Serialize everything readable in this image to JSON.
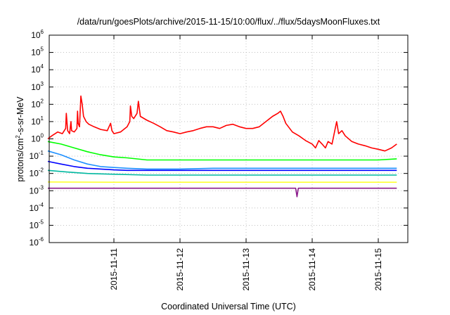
{
  "chart_data": {
    "type": "line",
    "title": "/data/run/goesPlots/archive/2015-11-15/10:00/flux/../flux/5daysMoonFluxes.txt",
    "xlabel": "Coordinated Universal Time (UTC)",
    "ylabel": "protons/cm²-s-sr-MeV",
    "ylabel_parts": {
      "before": "protons/cm",
      "sup": "2",
      "after": "-s-sr-MeV"
    },
    "yscale": "log",
    "ylim_exponent": [
      -6,
      6
    ],
    "y_tick_exponents": [
      -6,
      -5,
      -4,
      -3,
      -2,
      -1,
      0,
      1,
      2,
      3,
      4,
      5,
      6
    ],
    "y_tick_base": "10",
    "x_range_days": [
      "2015-11-10",
      "2015-11-15"
    ],
    "x_ticks": [
      "2015-11-11",
      "2015-11-12",
      "2015-11-13",
      "2015-11-14",
      "2015-11-15"
    ],
    "grid": true,
    "series": [
      {
        "color": "#ff0000",
        "points": [
          [
            0.0,
            1.0
          ],
          [
            0.06,
            1.5
          ],
          [
            0.15,
            2.5
          ],
          [
            0.22,
            2.0
          ],
          [
            0.27,
            4.0
          ],
          [
            0.28,
            30
          ],
          [
            0.3,
            3.0
          ],
          [
            0.33,
            2.0
          ],
          [
            0.35,
            10
          ],
          [
            0.36,
            3.0
          ],
          [
            0.4,
            2.5
          ],
          [
            0.44,
            4.0
          ],
          [
            0.45,
            40
          ],
          [
            0.46,
            8.0
          ],
          [
            0.48,
            5.0
          ],
          [
            0.5,
            300
          ],
          [
            0.52,
            100
          ],
          [
            0.54,
            20
          ],
          [
            0.58,
            10
          ],
          [
            0.62,
            7
          ],
          [
            0.7,
            5
          ],
          [
            0.8,
            3.5
          ],
          [
            0.9,
            3.0
          ],
          [
            0.95,
            8.0
          ],
          [
            0.97,
            3.0
          ],
          [
            1.0,
            2.0
          ],
          [
            1.1,
            2.5
          ],
          [
            1.2,
            5.0
          ],
          [
            1.24,
            10
          ],
          [
            1.25,
            80
          ],
          [
            1.27,
            20
          ],
          [
            1.3,
            15
          ],
          [
            1.35,
            30
          ],
          [
            1.37,
            150
          ],
          [
            1.4,
            20
          ],
          [
            1.5,
            12
          ],
          [
            1.6,
            8
          ],
          [
            1.7,
            5
          ],
          [
            1.8,
            3
          ],
          [
            1.9,
            2.5
          ],
          [
            2.0,
            2.0
          ],
          [
            2.1,
            2.5
          ],
          [
            2.2,
            3
          ],
          [
            2.3,
            4
          ],
          [
            2.4,
            5
          ],
          [
            2.5,
            5
          ],
          [
            2.6,
            4
          ],
          [
            2.7,
            6
          ],
          [
            2.8,
            7
          ],
          [
            2.9,
            5
          ],
          [
            3.0,
            4
          ],
          [
            3.1,
            4
          ],
          [
            3.2,
            5
          ],
          [
            3.3,
            10
          ],
          [
            3.4,
            20
          ],
          [
            3.48,
            30
          ],
          [
            3.52,
            40
          ],
          [
            3.56,
            20
          ],
          [
            3.6,
            8
          ],
          [
            3.7,
            2.5
          ],
          [
            3.8,
            1.5
          ],
          [
            3.9,
            0.8
          ],
          [
            4.0,
            0.5
          ],
          [
            4.05,
            0.3
          ],
          [
            4.1,
            0.8
          ],
          [
            4.15,
            0.5
          ],
          [
            4.2,
            0.3
          ],
          [
            4.24,
            0.7
          ],
          [
            4.3,
            0.5
          ],
          [
            4.37,
            10
          ],
          [
            4.4,
            2
          ],
          [
            4.45,
            3
          ],
          [
            4.5,
            1.5
          ],
          [
            4.6,
            0.7
          ],
          [
            4.7,
            0.5
          ],
          [
            4.8,
            0.4
          ],
          [
            4.9,
            0.3
          ],
          [
            5.0,
            0.25
          ],
          [
            5.1,
            0.2
          ],
          [
            5.2,
            0.3
          ],
          [
            5.28,
            0.5
          ]
        ]
      },
      {
        "color": "#00ff00",
        "points": [
          [
            0.0,
            0.7
          ],
          [
            0.2,
            0.5
          ],
          [
            0.4,
            0.3
          ],
          [
            0.6,
            0.18
          ],
          [
            0.8,
            0.12
          ],
          [
            1.0,
            0.09
          ],
          [
            1.2,
            0.08
          ],
          [
            1.5,
            0.06
          ],
          [
            2.0,
            0.06
          ],
          [
            2.5,
            0.06
          ],
          [
            3.0,
            0.06
          ],
          [
            3.5,
            0.06
          ],
          [
            4.0,
            0.06
          ],
          [
            4.5,
            0.06
          ],
          [
            5.0,
            0.06
          ],
          [
            5.28,
            0.07
          ]
        ]
      },
      {
        "color": "#1e90ff",
        "points": [
          [
            0.0,
            0.2
          ],
          [
            0.2,
            0.12
          ],
          [
            0.4,
            0.06
          ],
          [
            0.6,
            0.035
          ],
          [
            0.8,
            0.025
          ],
          [
            1.0,
            0.022
          ],
          [
            1.2,
            0.02
          ],
          [
            1.5,
            0.018
          ],
          [
            2.0,
            0.018
          ],
          [
            2.5,
            0.02
          ],
          [
            3.0,
            0.02
          ],
          [
            3.5,
            0.02
          ],
          [
            4.0,
            0.02
          ],
          [
            4.5,
            0.02
          ],
          [
            5.0,
            0.02
          ],
          [
            5.28,
            0.02
          ]
        ]
      },
      {
        "color": "#0000ff",
        "points": [
          [
            0.0,
            0.05
          ],
          [
            0.2,
            0.035
          ],
          [
            0.4,
            0.025
          ],
          [
            0.6,
            0.02
          ],
          [
            0.8,
            0.018
          ],
          [
            1.0,
            0.016
          ],
          [
            1.2,
            0.015
          ],
          [
            1.5,
            0.015
          ],
          [
            2.0,
            0.015
          ],
          [
            2.5,
            0.015
          ],
          [
            3.0,
            0.015
          ],
          [
            3.5,
            0.015
          ],
          [
            4.0,
            0.015
          ],
          [
            4.5,
            0.015
          ],
          [
            5.0,
            0.015
          ],
          [
            5.28,
            0.015
          ]
        ]
      },
      {
        "color": "#00b8a0",
        "points": [
          [
            0.0,
            0.015
          ],
          [
            0.3,
            0.012
          ],
          [
            0.6,
            0.01
          ],
          [
            1.0,
            0.009
          ],
          [
            1.5,
            0.008
          ],
          [
            2.0,
            0.008
          ],
          [
            2.5,
            0.008
          ],
          [
            3.0,
            0.008
          ],
          [
            3.5,
            0.008
          ],
          [
            4.0,
            0.008
          ],
          [
            4.5,
            0.008
          ],
          [
            5.0,
            0.008
          ],
          [
            5.28,
            0.008
          ]
        ]
      },
      {
        "color": "#ffff33",
        "points": [
          [
            0.0,
            0.0032
          ],
          [
            1.0,
            0.0031
          ],
          [
            2.0,
            0.0031
          ],
          [
            3.0,
            0.0031
          ],
          [
            4.0,
            0.0031
          ],
          [
            5.0,
            0.0031
          ],
          [
            5.28,
            0.0031
          ]
        ]
      },
      {
        "color": "#8b1a8b",
        "points": [
          [
            0.0,
            0.0014
          ],
          [
            1.0,
            0.0014
          ],
          [
            2.0,
            0.0014
          ],
          [
            3.0,
            0.0014
          ],
          [
            3.75,
            0.0014
          ],
          [
            3.77,
            0.00045
          ],
          [
            3.79,
            0.0014
          ],
          [
            4.5,
            0.0014
          ],
          [
            5.0,
            0.0014
          ],
          [
            5.28,
            0.0014
          ]
        ]
      }
    ]
  }
}
